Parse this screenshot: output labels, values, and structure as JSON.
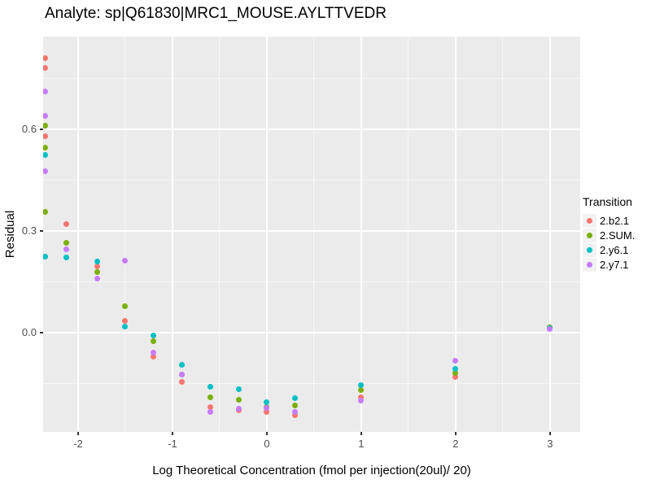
{
  "chart_data": {
    "type": "scatter",
    "title": "Analyte: sp|Q61830|MRC1_MOUSE.AYLTTVEDR",
    "xlabel": "Log Theoretical Concentration (fmol per injection(20ul)/ 20)",
    "ylabel": "Residual",
    "legend_title": "Transition",
    "legend_position": "right",
    "grid": true,
    "panel_background": "#EBEBEB",
    "gridline_color": "#FFFFFF",
    "tick_label_color": "#4D4D4D",
    "xlim": [
      -2.37,
      3.32
    ],
    "ylim": [
      -0.293,
      0.873
    ],
    "x_ticks": [
      -2,
      -1,
      0,
      1,
      2,
      3
    ],
    "x_tick_labels": [
      "-2",
      "-1",
      "0",
      "1",
      "2",
      "3"
    ],
    "y_ticks": [
      0.0,
      0.3,
      0.6
    ],
    "y_tick_labels": [
      "0.0",
      "0.3",
      "0.6"
    ],
    "x_minor_gridlines": [
      -1.5,
      -0.5,
      0.5,
      1.5,
      2.5
    ],
    "y_minor_gridlines": [
      -0.15,
      0.15,
      0.45,
      0.75
    ],
    "series": [
      {
        "name": "2.b2.1",
        "color": "#F8766D",
        "points": [
          [
            -2.35,
            0.81
          ],
          [
            -2.35,
            0.78
          ],
          [
            -2.35,
            0.58
          ],
          [
            -2.12,
            0.32
          ],
          [
            -1.8,
            0.195
          ],
          [
            -1.5,
            0.035
          ],
          [
            -1.2,
            -0.07
          ],
          [
            -0.9,
            -0.145
          ],
          [
            -0.6,
            -0.22
          ],
          [
            -0.3,
            -0.23
          ],
          [
            0,
            -0.235
          ],
          [
            0.3,
            -0.245
          ],
          [
            1,
            -0.19
          ],
          [
            2,
            -0.13
          ],
          [
            3,
            0.015
          ]
        ]
      },
      {
        "name": "2.SUM.",
        "color": "#7CAE00",
        "points": [
          [
            -2.35,
            0.61
          ],
          [
            -2.35,
            0.545
          ],
          [
            -2.35,
            0.355
          ],
          [
            -2.12,
            0.265
          ],
          [
            -1.8,
            0.178
          ],
          [
            -1.5,
            0.078
          ],
          [
            -1.2,
            -0.026
          ],
          [
            -0.9,
            -0.125
          ],
          [
            -0.6,
            -0.19
          ],
          [
            -0.3,
            -0.198
          ],
          [
            0,
            -0.22
          ],
          [
            0.3,
            -0.215
          ],
          [
            1,
            -0.17
          ],
          [
            2,
            -0.12
          ],
          [
            3,
            0.016
          ]
        ]
      },
      {
        "name": "2.y6.1",
        "color": "#00BFC4",
        "points": [
          [
            -2.35,
            0.525
          ],
          [
            -2.35,
            0.225
          ],
          [
            -2.12,
            0.222
          ],
          [
            -1.8,
            0.21
          ],
          [
            -1.5,
            0.018
          ],
          [
            -1.2,
            -0.009
          ],
          [
            -0.9,
            -0.096
          ],
          [
            -0.6,
            -0.16
          ],
          [
            -0.3,
            -0.168
          ],
          [
            0,
            -0.205
          ],
          [
            0.3,
            -0.193
          ],
          [
            1,
            -0.156
          ],
          [
            2,
            -0.106
          ],
          [
            3,
            0.013
          ]
        ]
      },
      {
        "name": "2.y7.1",
        "color": "#C77CFF",
        "points": [
          [
            -2.35,
            0.71
          ],
          [
            -2.35,
            0.64
          ],
          [
            -2.35,
            0.475
          ],
          [
            -2.12,
            0.245
          ],
          [
            -1.8,
            0.16
          ],
          [
            -1.5,
            0.212
          ],
          [
            -1.2,
            -0.058
          ],
          [
            -0.9,
            -0.124
          ],
          [
            -0.6,
            -0.235
          ],
          [
            -0.3,
            -0.225
          ],
          [
            0,
            -0.222
          ],
          [
            0.3,
            -0.235
          ],
          [
            1,
            -0.2
          ],
          [
            2,
            -0.082
          ],
          [
            3,
            0.011
          ]
        ]
      }
    ]
  }
}
